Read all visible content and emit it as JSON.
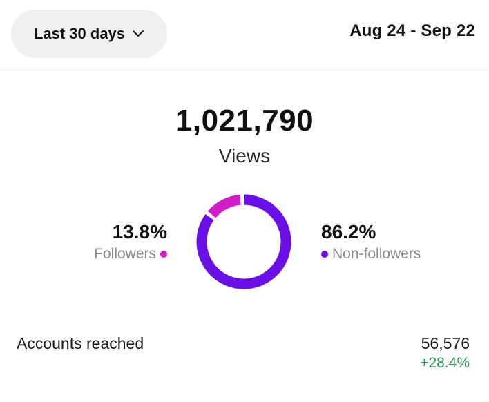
{
  "header": {
    "range_label": "Last 30 days",
    "range_icon": "chevron-down-icon",
    "date_range": "Aug 24 - Sep 22"
  },
  "views": {
    "total": "1,021,790",
    "label": "Views"
  },
  "breakdown": {
    "followers": {
      "percent": "13.8%",
      "label": "Followers",
      "fraction": 0.138,
      "color": "#d21bc9"
    },
    "non_followers": {
      "percent": "86.2%",
      "label": "Non-followers",
      "fraction": 0.862,
      "color": "#6a0fe6"
    }
  },
  "accounts_reached": {
    "label": "Accounts reached",
    "value": "56,576",
    "change": "+28.4%",
    "change_color": "#2e9a55"
  }
}
